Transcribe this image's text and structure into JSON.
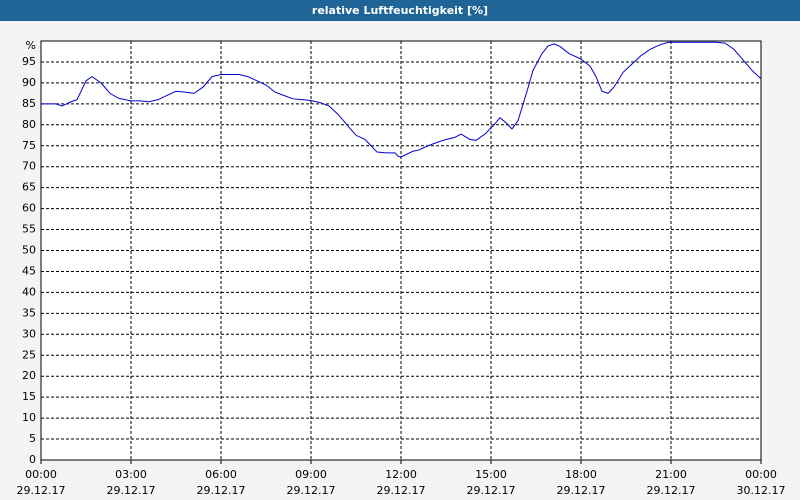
{
  "chart_data": {
    "type": "line",
    "title": "relative Luftfeuchtigkeit [%]",
    "y_unit_label": "%",
    "color": "#0000cc",
    "x": [
      0,
      0.5,
      0.7,
      1.0,
      1.2,
      1.5,
      1.7,
      2.0,
      2.3,
      2.6,
      3.0,
      3.3,
      3.6,
      3.9,
      4.2,
      4.5,
      4.8,
      5.1,
      5.4,
      5.7,
      6.0,
      6.3,
      6.6,
      6.9,
      7.2,
      7.5,
      7.8,
      8.1,
      8.4,
      8.7,
      9.0,
      9.3,
      9.6,
      9.9,
      10.2,
      10.5,
      10.8,
      11.0,
      11.2,
      11.5,
      11.8,
      11.9,
      12.0,
      12.2,
      12.4,
      12.6,
      12.9,
      13.2,
      13.5,
      13.8,
      14.0,
      14.3,
      14.5,
      14.8,
      15.1,
      15.3,
      15.5,
      15.7,
      15.9,
      16.2,
      16.4,
      16.7,
      16.9,
      17.1,
      17.3,
      17.6,
      18.0,
      18.3,
      18.5,
      18.7,
      18.9,
      19.1,
      19.4,
      19.7,
      20.0,
      20.3,
      20.6,
      20.9,
      21.5,
      22.0,
      22.5,
      22.8,
      23.1,
      23.4,
      23.7,
      24.0
    ],
    "values": [
      85,
      85,
      84.5,
      85.5,
      86,
      90.5,
      91.5,
      90,
      87.5,
      86.3,
      85.7,
      85.7,
      85.5,
      86,
      87,
      88,
      87.8,
      87.5,
      89,
      91.5,
      92,
      92,
      92,
      91.5,
      90.5,
      89.5,
      87.8,
      87,
      86.2,
      86,
      85.8,
      85.3,
      84.5,
      82.5,
      80,
      77.5,
      76.5,
      75,
      73.5,
      73.3,
      73.3,
      72.5,
      72.3,
      73,
      73.7,
      74,
      75,
      75.8,
      76.5,
      77,
      77.8,
      76.5,
      76.3,
      77.8,
      80,
      81.7,
      80.5,
      79,
      81,
      88,
      93,
      97,
      98.8,
      99.3,
      98.7,
      97,
      95.7,
      94,
      91.5,
      88,
      87.5,
      89,
      92.5,
      94.5,
      96.5,
      98,
      99,
      99.7,
      99.7,
      99.7,
      99.7,
      99.5,
      98,
      95.5,
      93,
      91
    ],
    "xlim": [
      0,
      24
    ],
    "xticks": [
      {
        "value": 0,
        "label": [
          "00:00",
          "29.12.17"
        ]
      },
      {
        "value": 3,
        "label": [
          "03:00",
          "29.12.17"
        ]
      },
      {
        "value": 6,
        "label": [
          "06:00",
          "29.12.17"
        ]
      },
      {
        "value": 9,
        "label": [
          "09:00",
          "29.12.17"
        ]
      },
      {
        "value": 12,
        "label": [
          "12:00",
          "29.12.17"
        ]
      },
      {
        "value": 15,
        "label": [
          "15:00",
          "29.12.17"
        ]
      },
      {
        "value": 18,
        "label": [
          "18:00",
          "29.12.17"
        ]
      },
      {
        "value": 21,
        "label": [
          "21:00",
          "29.12.17"
        ]
      },
      {
        "value": 24,
        "label": [
          "00:00",
          "30.12.17"
        ]
      }
    ],
    "ylim": [
      0,
      100
    ],
    "yticks": [
      0,
      5,
      10,
      15,
      20,
      25,
      30,
      35,
      40,
      45,
      50,
      55,
      60,
      65,
      70,
      75,
      80,
      85,
      90,
      95
    ],
    "grid": true
  }
}
